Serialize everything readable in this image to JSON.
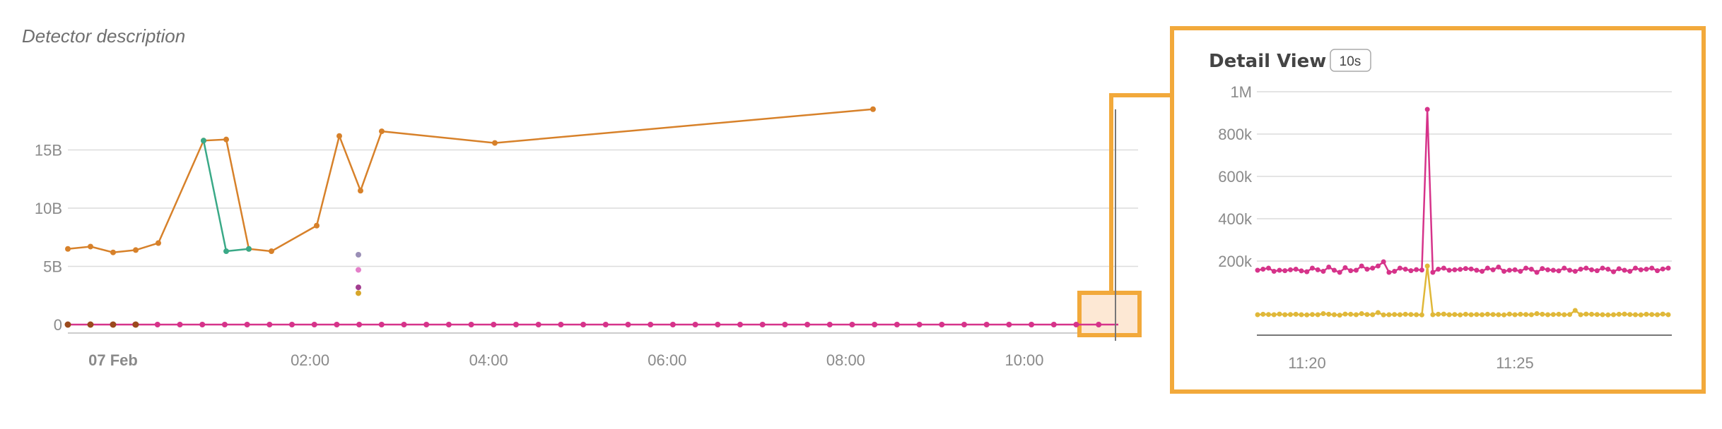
{
  "detector": {
    "description": "Detector description"
  },
  "detail": {
    "title": "Detail View",
    "badge": "10s"
  },
  "colors": {
    "orange": "#d7812a",
    "teal": "#3aa987",
    "magenta": "#d6338a",
    "yellow": "#e0b839",
    "grid": "#dcdcdc",
    "highlight": "#f2a93b",
    "highlight_fill": "#fde8d4",
    "axis_text": "#8a8a8a"
  },
  "chart_data": [
    {
      "type": "line",
      "xlabel": "",
      "ylabel": "",
      "x_ticks": [
        "07 Feb",
        "02:00",
        "04:00",
        "06:00",
        "08:00",
        "10:00"
      ],
      "y_ticks": [
        "0",
        "5B",
        "10B",
        "15B"
      ],
      "ylim": [
        0,
        20000000000
      ],
      "xlim_hours": [
        0,
        11.4
      ],
      "grid": true,
      "series": [
        {
          "color": "orange",
          "x_hours": [
            0,
            0.5,
            1,
            1.5,
            2,
            3,
            3.5,
            4,
            4.5,
            5,
            6,
            6.5,
            7,
            7.5,
            8,
            10,
            17.5
          ],
          "x": [
            "00:00",
            "00:15",
            "00:30",
            "00:45",
            "01:00",
            "01:30",
            "01:45",
            "02:00",
            "02:15",
            "02:30",
            "03:00",
            "03:15",
            "03:30",
            "03:45",
            "04:00",
            "05:00",
            "08:45"
          ],
          "values": [
            6500000000,
            6700000000,
            6200000000,
            6400000000,
            7000000000,
            15800000000,
            15900000000,
            6500000000,
            6300000000,
            8500000000,
            16300000000,
            11500000000,
            16600000000,
            15600000000,
            15700000000,
            15500000000,
            18500000000
          ]
        },
        {
          "color": "teal",
          "x": [
            "01:30",
            "01:45"
          ],
          "values": [
            15800000000,
            6500000000
          ]
        },
        {
          "color": "magenta",
          "x": [
            "00:00",
            "11:15"
          ],
          "values": [
            0,
            0
          ]
        }
      ],
      "scatter_points": [
        {
          "x": "02:45",
          "value": 6000000000,
          "color": "#9a8fb6"
        },
        {
          "x": "02:45",
          "value": 4700000000,
          "color": "#e47fc9"
        },
        {
          "x": "02:45",
          "value": 3200000000,
          "color": "#a23d8f"
        },
        {
          "x": "02:45",
          "value": 2700000000,
          "color": "#d7a62a"
        }
      ]
    },
    {
      "type": "line",
      "title": "Detail View",
      "x_ticks": [
        "11:20",
        "11:25"
      ],
      "y_ticks": [
        "200k",
        "400k",
        "600k",
        "800k",
        "1M"
      ],
      "ylim": [
        0,
        1000000
      ],
      "grid": true,
      "series": [
        {
          "color": "magenta",
          "values": [
            290000,
            295000,
            300000,
            285000,
            290000,
            288000,
            292000,
            295000,
            287000,
            283000,
            300000,
            292000,
            285000,
            305000,
            290000,
            280000,
            302000,
            288000,
            290000,
            310000,
            295000,
            300000,
            310000,
            330000,
            280000,
            285000,
            300000,
            295000,
            288000,
            293000,
            291000,
            1050000,
            280000,
            295000,
            300000,
            290000,
            292000,
            294000,
            298000,
            296000,
            290000,
            285000,
            300000,
            292000,
            305000,
            285000,
            290000,
            292000,
            285000,
            300000,
            295000,
            280000,
            298000,
            292000,
            290000,
            287000,
            300000,
            290000,
            285000,
            295000,
            300000,
            292000,
            288000,
            300000,
            295000,
            283000,
            297000,
            290000,
            285000,
            300000,
            292000,
            295000,
            300000,
            288000,
            296000,
            300000
          ]
        },
        {
          "color": "yellow",
          "values": [
            80000,
            82000,
            81000,
            80000,
            83000,
            80000,
            81000,
            82000,
            80000,
            79000,
            81000,
            80000,
            85000,
            82000,
            80000,
            78000,
            83000,
            82000,
            80000,
            85000,
            81000,
            80000,
            90000,
            79000,
            80000,
            81000,
            80000,
            82000,
            81000,
            80000,
            79000,
            310000,
            80000,
            82000,
            83000,
            80000,
            81000,
            79000,
            82000,
            80000,
            81000,
            80000,
            82000,
            81000,
            80000,
            79000,
            83000,
            80000,
            82000,
            81000,
            80000,
            85000,
            82000,
            80000,
            81000,
            82000,
            80000,
            81000,
            100000,
            80000,
            83000,
            82000,
            81000,
            80000,
            79000,
            80000,
            82000,
            83000,
            81000,
            80000,
            79000,
            82000,
            81000,
            80000,
            83000,
            80000
          ]
        }
      ]
    }
  ]
}
